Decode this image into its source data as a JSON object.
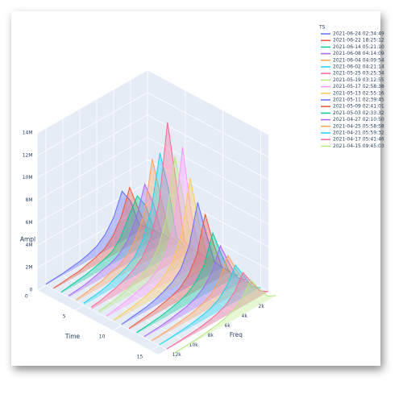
{
  "chart_data": {
    "type": "waterfall3d",
    "legend_title": "TS",
    "x_label": "Freq",
    "y_label": "Time",
    "z_label": "Ampl",
    "x": [
      0,
      1000,
      2000,
      3000,
      4000,
      5000,
      6000,
      7000,
      8000,
      9000,
      10000,
      11000,
      12000
    ],
    "xlim": [
      0,
      13000
    ],
    "xticks": [
      {
        "value": 2000,
        "label": "2k"
      },
      {
        "value": 4000,
        "label": "4k"
      },
      {
        "value": 6000,
        "label": "6k"
      },
      {
        "value": 8000,
        "label": "8k"
      },
      {
        "value": 10000,
        "label": "10k"
      },
      {
        "value": 12000,
        "label": "12k"
      }
    ],
    "ylim": [
      0,
      16
    ],
    "yticks": [
      0,
      5,
      10,
      15
    ],
    "zlim": [
      0,
      14000000
    ],
    "zticks": [
      0,
      {
        "value": 2000000,
        "label": "2M"
      },
      {
        "value": 4000000,
        "label": "4M"
      },
      {
        "value": 6000000,
        "label": "6M"
      },
      {
        "value": 8000000,
        "label": "8M"
      },
      {
        "value": 10000000,
        "label": "10M"
      },
      {
        "value": 12000000,
        "label": "12M"
      },
      {
        "value": 14000000,
        "label": "14M"
      }
    ],
    "series": [
      {
        "name": "2021-06-24 02:34:49",
        "color": "#636efa",
        "values": [
          0,
          700000,
          3200000,
          4500000,
          2600000,
          1500000,
          900000,
          600000,
          400000,
          300000,
          200000,
          150000,
          100000
        ]
      },
      {
        "name": "2021-06-22 18:25:12",
        "color": "#EF553B",
        "values": [
          0,
          800000,
          2900000,
          5200000,
          3000000,
          1700000,
          1000000,
          700000,
          500000,
          300000,
          250000,
          150000,
          100000
        ]
      },
      {
        "name": "2021-06-14 05:21:10",
        "color": "#00cc96",
        "values": [
          0,
          900000,
          3500000,
          4800000,
          3400000,
          1900000,
          1100000,
          800000,
          600000,
          400000,
          300000,
          200000,
          100000
        ]
      },
      {
        "name": "2021-06-08 04:14:09",
        "color": "#ab63fa",
        "values": [
          0,
          1000000,
          4100000,
          6200000,
          3600000,
          2100000,
          1300000,
          900000,
          700000,
          500000,
          300000,
          200000,
          150000
        ]
      },
      {
        "name": "2021-06-04 04:09:54",
        "color": "#FFA15A",
        "values": [
          0,
          1200000,
          5000000,
          8800000,
          4200000,
          2500000,
          1500000,
          1000000,
          800000,
          500000,
          400000,
          250000,
          150000
        ]
      },
      {
        "name": "2021-06-02 04:21:14",
        "color": "#19d3f3",
        "values": [
          0,
          1300000,
          6100000,
          9700000,
          5200000,
          2900000,
          1700000,
          1200000,
          900000,
          600000,
          400000,
          300000,
          200000
        ]
      },
      {
        "name": "2021-05-25 03:25:34",
        "color": "#FF6692",
        "values": [
          0,
          1400000,
          7200000,
          12800000,
          6000000,
          3300000,
          2000000,
          1400000,
          1000000,
          700000,
          500000,
          300000,
          200000
        ]
      },
      {
        "name": "2021-05-19 03:12:55",
        "color": "#B6E880",
        "values": [
          0,
          1200000,
          5900000,
          10100000,
          5100000,
          2800000,
          1700000,
          1200000,
          900000,
          600000,
          400000,
          300000,
          200000
        ]
      },
      {
        "name": "2021-05-17 02:58:38",
        "color": "#FF97FF",
        "values": [
          0,
          1100000,
          5200000,
          11300000,
          4800000,
          2600000,
          1600000,
          1100000,
          800000,
          600000,
          400000,
          250000,
          150000
        ]
      },
      {
        "name": "2021-05-13 02:55:16",
        "color": "#FECB52",
        "values": [
          0,
          1000000,
          4600000,
          8900000,
          4300000,
          2400000,
          1500000,
          1000000,
          700000,
          500000,
          350000,
          250000,
          150000
        ]
      },
      {
        "name": "2021-05-11 02:39:45",
        "color": "#636efa",
        "values": [
          0,
          900000,
          3900000,
          7100000,
          3700000,
          2000000,
          1300000,
          900000,
          600000,
          400000,
          300000,
          200000,
          100000
        ]
      },
      {
        "name": "2021-05-09 02:41:01",
        "color": "#EF553B",
        "values": [
          0,
          800000,
          3300000,
          6400000,
          3200000,
          1800000,
          1100000,
          800000,
          600000,
          400000,
          300000,
          200000,
          100000
        ]
      },
      {
        "name": "2021-05-03 02:33:32",
        "color": "#00cc96",
        "values": [
          0,
          700000,
          2800000,
          5100000,
          2700000,
          1600000,
          1000000,
          700000,
          500000,
          350000,
          250000,
          150000,
          100000
        ]
      },
      {
        "name": "2021-04-27 02:10:50",
        "color": "#ab63fa",
        "values": [
          0,
          600000,
          2400000,
          4300000,
          2400000,
          1400000,
          900000,
          600000,
          450000,
          300000,
          200000,
          150000,
          100000
        ]
      },
      {
        "name": "2021-04-25 05:58:58",
        "color": "#FFA15A",
        "values": [
          0,
          600000,
          2100000,
          3800000,
          2100000,
          1200000,
          800000,
          550000,
          400000,
          300000,
          200000,
          150000,
          100000
        ]
      },
      {
        "name": "2021-04-21 05:59:32",
        "color": "#19d3f3",
        "values": [
          0,
          500000,
          1900000,
          3300000,
          1900000,
          1100000,
          700000,
          500000,
          350000,
          250000,
          180000,
          120000,
          80000
        ]
      },
      {
        "name": "2021-04-17 05:41:46",
        "color": "#FF6692",
        "values": [
          0,
          500000,
          1700000,
          3000000,
          1700000,
          1000000,
          650000,
          450000,
          300000,
          220000,
          160000,
          110000,
          70000
        ]
      },
      {
        "name": "2021-04-15 09:45:03",
        "color": "#B6E880",
        "values": [
          0,
          400000,
          1500000,
          2700000,
          1500000,
          900000,
          600000,
          400000,
          280000,
          200000,
          140000,
          100000,
          60000
        ]
      }
    ]
  }
}
